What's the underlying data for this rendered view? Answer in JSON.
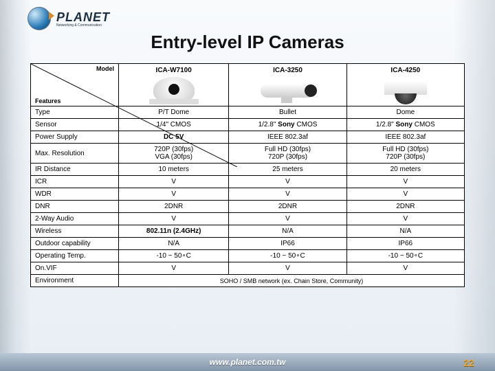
{
  "logo": {
    "text": "PLANET",
    "subtext": "Networking & Communication"
  },
  "title_bold": "Entry-level",
  "title_rest": " IP Cameras",
  "corner": {
    "model": "Model",
    "features": "Features"
  },
  "models": [
    "ICA-W7100",
    "ICA-3250",
    "ICA-4250"
  ],
  "rows": [
    {
      "label": "Type",
      "v": [
        "P/T Dome",
        "Bullet",
        "Dome"
      ]
    },
    {
      "label": "Sensor",
      "v": [
        "1/4\" CMOS",
        "1/2.8\" <b>Sony</b> CMOS",
        "1/2.8\" <b>Sony</b> CMOS"
      ],
      "html": true
    },
    {
      "label": "Power Supply",
      "v": [
        "<b>DC 5V</b>",
        "IEEE 802.3af",
        "IEEE 802.3af"
      ],
      "html": true
    },
    {
      "label": "Max. Resolution",
      "v": [
        "720P (30fps)<br>VGA (30fps)",
        "Full HD (30fps)<br>720P (30fps)",
        "Full HD (30fps)<br>720P (30fps)"
      ],
      "html": true
    },
    {
      "label": "IR Distance",
      "v": [
        "10 meters",
        "25 meters",
        "20 meters"
      ]
    },
    {
      "label": "ICR",
      "v": [
        "V",
        "V",
        "V"
      ]
    },
    {
      "label": "WDR",
      "v": [
        "V",
        "V",
        "V"
      ]
    },
    {
      "label": "DNR",
      "v": [
        "2DNR",
        "2DNR",
        "2DNR"
      ]
    },
    {
      "label": "2-Way Audio",
      "v": [
        "V",
        "V",
        "V"
      ]
    },
    {
      "label": "Wireless",
      "v": [
        "<b>802.11n (2.4GHz)</b>",
        "N/A",
        "N/A"
      ],
      "html": true
    },
    {
      "label": "Outdoor capability",
      "v": [
        "N/A",
        "IP66",
        "IP66"
      ]
    },
    {
      "label": "Operating Temp.",
      "v": [
        "-10 ~ 50∘C",
        "-10 ~ 50∘C",
        "-10 ~ 50∘C"
      ]
    },
    {
      "label": "On.VIF",
      "v": [
        "V",
        "V",
        "V"
      ]
    }
  ],
  "env": {
    "label": "Environment",
    "value": "SOHO / SMB network (ex. Chain Store, Community)"
  },
  "footer": {
    "url": "www.planet.com.tw",
    "page": "22"
  },
  "colors": {
    "border": "#000000",
    "title": "#111111",
    "footer_text": "#ffffff",
    "page_num": "#e6a93a"
  }
}
